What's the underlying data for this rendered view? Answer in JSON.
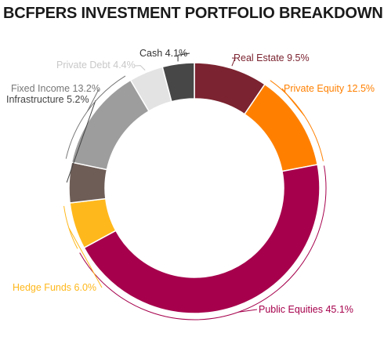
{
  "title": "BCFPERS INVESTMENT PORTFOLIO BREAKDOWN",
  "chart_data": {
    "type": "pie",
    "title": "BCFPERS INVESTMENT PORTFOLIO BREAKDOWN",
    "donut": true,
    "slices": [
      {
        "name": "Real Estate",
        "value": 9.5,
        "label": "Real Estate 9.5%",
        "color": "#7B2330",
        "label_color": "#7B2330"
      },
      {
        "name": "Private Equity",
        "value": 12.5,
        "label": "Private Equity 12.5%",
        "color": "#FF8000",
        "label_color": "#FF8000"
      },
      {
        "name": "Public Equities",
        "value": 45.1,
        "label": "Public Equities 45.1%",
        "color": "#A6004C",
        "label_color": "#A6004C"
      },
      {
        "name": "Hedge Funds",
        "value": 6.0,
        "label": "Hedge Funds 6.0%",
        "color": "#FFB81C",
        "label_color": "#FFB81C"
      },
      {
        "name": "Infrastructure",
        "value": 5.2,
        "label": "Infrastructure 5.2%",
        "color": "#6E5D57",
        "label_color": "#444444"
      },
      {
        "name": "Fixed Income",
        "value": 13.2,
        "label": "Fixed Income 13.2%",
        "color": "#9D9D9D",
        "label_color": "#777777"
      },
      {
        "name": "Private Debt",
        "value": 4.4,
        "label": "Private Debt 4.4%",
        "color": "#E3E3E3",
        "label_color": "#C8C8C8"
      },
      {
        "name": "Cash",
        "value": 4.1,
        "label": "Cash 4.1%",
        "color": "#474747",
        "label_color": "#333333"
      }
    ]
  }
}
